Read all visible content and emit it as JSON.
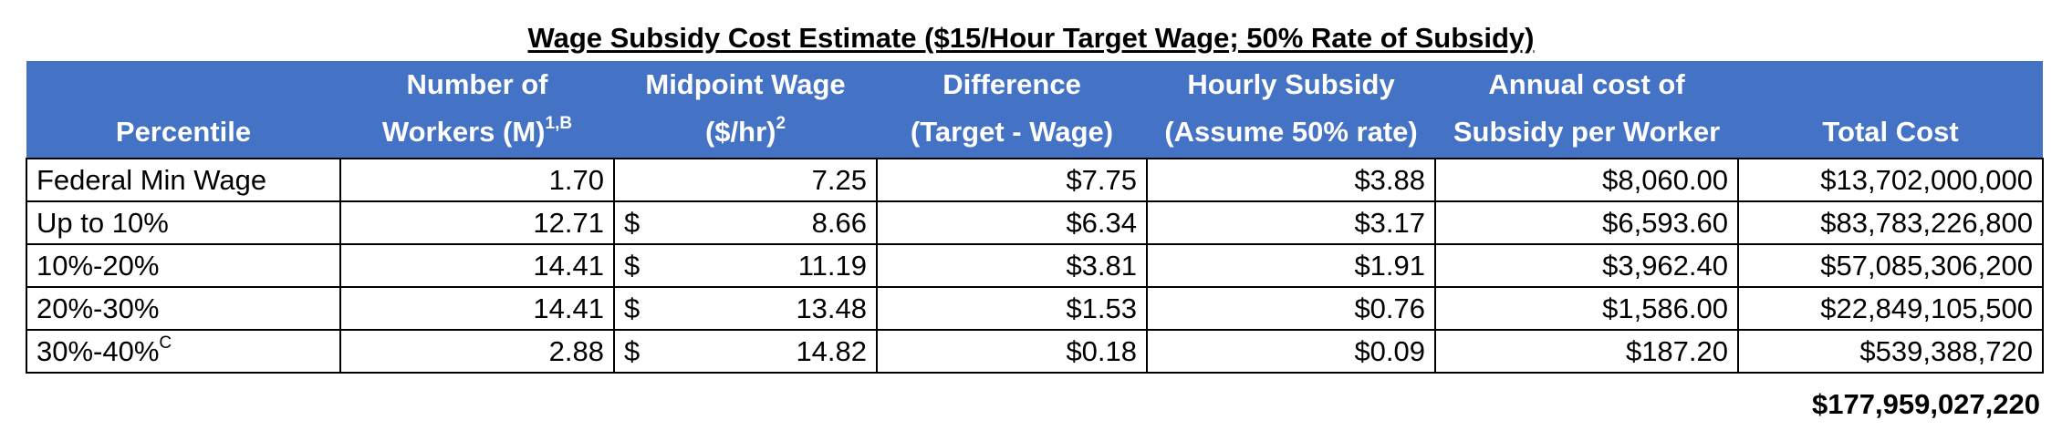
{
  "title": "Wage Subsidy Cost Estimate ($15/Hour Target Wage; 50% Rate of Subsidy)",
  "headers": {
    "percentile": "Percentile",
    "workers_line1": "Number of",
    "workers_line2": "Workers (M)",
    "workers_sup": "1,B",
    "midpoint_line1": "Midpoint Wage",
    "midpoint_line2": "($/hr)",
    "midpoint_sup": "2",
    "difference_line1": "Difference",
    "difference_line2": "(Target - Wage)",
    "hourly_line1": "Hourly Subsidy",
    "hourly_line2": "(Assume 50% rate)",
    "annual_line1": "Annual cost of",
    "annual_line2": "Subsidy per Worker",
    "total": "Total Cost"
  },
  "rows": [
    {
      "percentile": "Federal Min Wage",
      "percentile_sup": "",
      "workers": "1.70",
      "currency": "",
      "midpoint": "7.25",
      "difference": "$7.75",
      "hourly": "$3.88",
      "annual": "$8,060.00",
      "total": "$13,702,000,000"
    },
    {
      "percentile": "Up to 10%",
      "percentile_sup": "",
      "workers": "12.71",
      "currency": "$",
      "midpoint": "8.66",
      "difference": "$6.34",
      "hourly": "$3.17",
      "annual": "$6,593.60",
      "total": "$83,783,226,800"
    },
    {
      "percentile": "10%-20%",
      "percentile_sup": "",
      "workers": "14.41",
      "currency": "$",
      "midpoint": "11.19",
      "difference": "$3.81",
      "hourly": "$1.91",
      "annual": "$3,962.40",
      "total": "$57,085,306,200"
    },
    {
      "percentile": "20%-30%",
      "percentile_sup": "",
      "workers": "14.41",
      "currency": "$",
      "midpoint": "13.48",
      "difference": "$1.53",
      "hourly": "$0.76",
      "annual": "$1,586.00",
      "total": "$22,849,105,500"
    },
    {
      "percentile": "30%-40%",
      "percentile_sup": "C",
      "workers": "2.88",
      "currency": "$",
      "midpoint": "14.82",
      "difference": "$0.18",
      "hourly": "$0.09",
      "annual": "$187.20",
      "total": "$539,388,720"
    }
  ],
  "grand_total": "$177,959,027,220",
  "colors": {
    "header_background": "#4472c4",
    "header_text": "#ffffff",
    "border": "#000000"
  }
}
